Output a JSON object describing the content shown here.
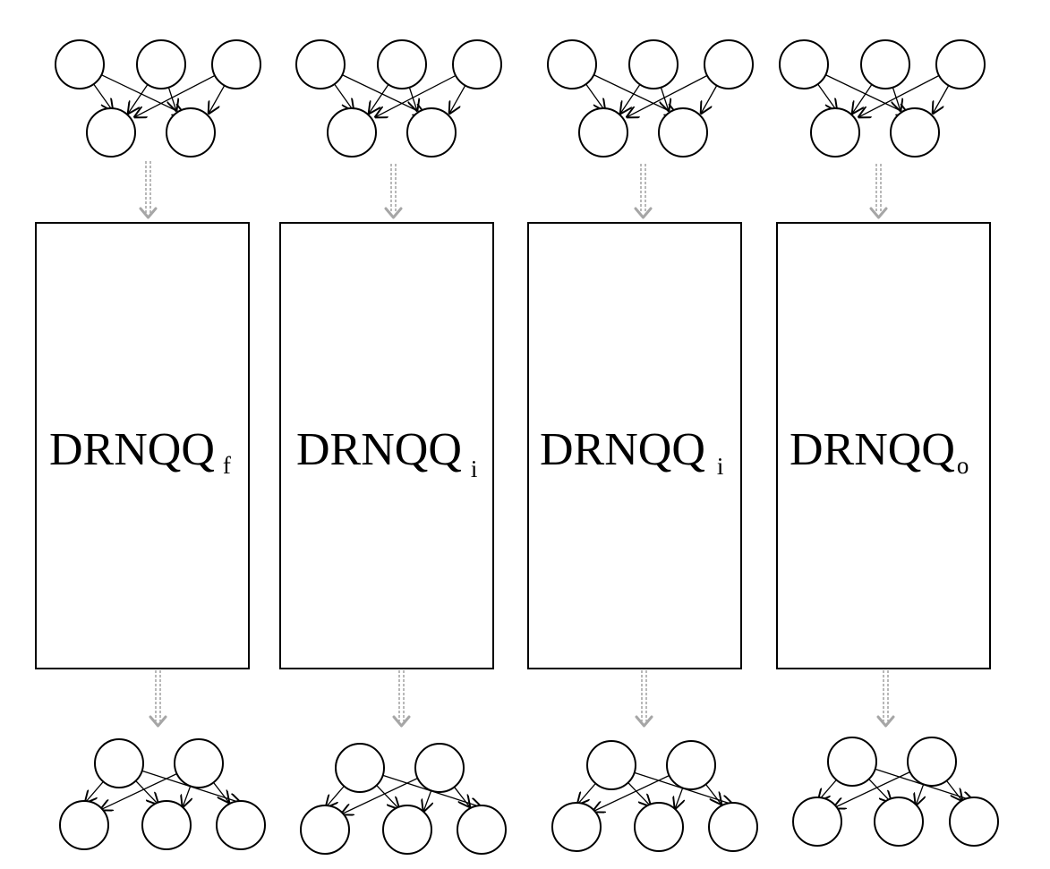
{
  "diagram": {
    "columns": [
      {
        "id": "forget",
        "label_main": "DRNQQ",
        "label_sub": "f",
        "input_net": "3-2",
        "output_net": "2-3"
      },
      {
        "id": "input-1",
        "label_main": "DRNQQ",
        "label_sub": "i",
        "input_net": "3-2",
        "output_net": "2-3"
      },
      {
        "id": "input-2",
        "label_main": "DRNQQ",
        "label_sub": "i",
        "input_net": "3-2",
        "output_net": "2-3"
      },
      {
        "id": "output",
        "label_main": "DRNQQ",
        "label_sub": "o",
        "input_net": "3-2",
        "output_net": "2-3"
      }
    ],
    "colors": {
      "stroke": "#000000",
      "flow_arrow": "#a6a6a6",
      "background": "#ffffff"
    }
  }
}
